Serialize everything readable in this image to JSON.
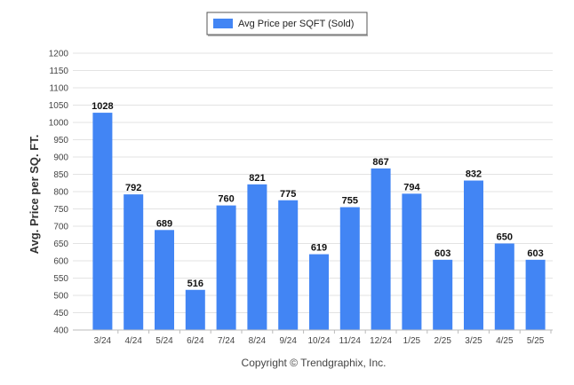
{
  "chart_data": {
    "type": "bar",
    "categories": [
      "3/24",
      "4/24",
      "5/24",
      "6/24",
      "7/24",
      "8/24",
      "9/24",
      "10/24",
      "11/24",
      "12/24",
      "1/25",
      "2/25",
      "3/25",
      "4/25",
      "5/25"
    ],
    "series": [
      {
        "name": "Avg Price per SQFT (Sold)",
        "values": [
          1028,
          792,
          689,
          516,
          760,
          821,
          775,
          619,
          755,
          867,
          794,
          603,
          832,
          650,
          603
        ],
        "color": "#4285f4"
      }
    ],
    "title": "",
    "xlabel": "",
    "ylabel": "Avg. Price per SQ. FT.",
    "ylim": [
      400,
      1200
    ],
    "yticks": [
      400,
      450,
      500,
      550,
      600,
      650,
      700,
      750,
      800,
      850,
      900,
      950,
      1000,
      1050,
      1100,
      1150,
      1200
    ],
    "grid": true,
    "legend": "top-center",
    "data_labels": true
  },
  "footer": {
    "copyright": "Copyright © Trendgraphix, Inc."
  }
}
